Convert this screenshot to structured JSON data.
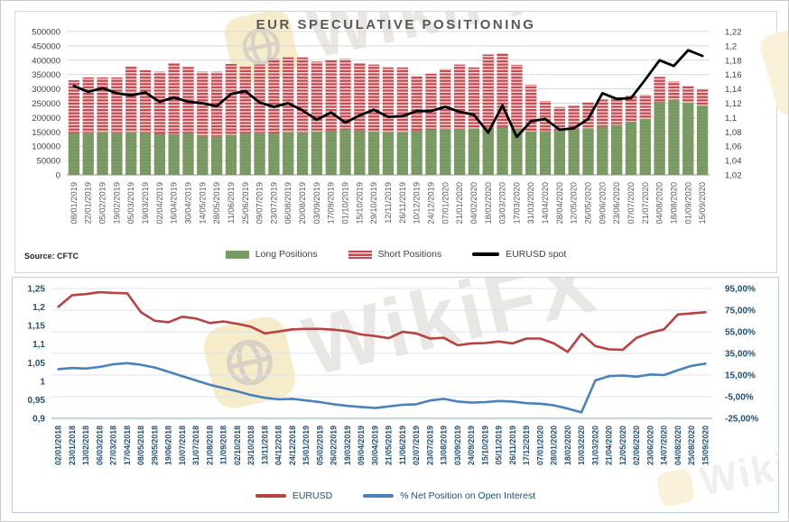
{
  "watermark": {
    "text": "WikiFX"
  },
  "chart_data": [
    {
      "id": "eur-speculative-positioning",
      "type": "bar",
      "subtype": "stacked-bars-with-line",
      "title": "EUR SPECULATIVE POSITIONING",
      "source": "Source: CFTC",
      "legend_position": "bottom",
      "grid": true,
      "left_axis": {
        "min": 0,
        "max": 500000,
        "tick_labels": [
          "500000",
          "450000",
          "400000",
          "350000",
          "300000",
          "250000",
          "200000",
          "150000",
          "100000",
          "50000",
          "0"
        ]
      },
      "right_axis": {
        "min": 1.02,
        "max": 1.22,
        "tick_labels": [
          "1,22",
          "1,2",
          "1,18",
          "1,16",
          "1,14",
          "1,12",
          "1,1",
          "1,08",
          "1,06",
          "1,04",
          "1,02"
        ]
      },
      "categories": [
        "08/01/2019",
        "22/01/2019",
        "05/02/2019",
        "19/02/2019",
        "05/03/2019",
        "19/03/2019",
        "02/04/2019",
        "16/04/2019",
        "30/04/2019",
        "14/05/2019",
        "28/05/2019",
        "11/06/2019",
        "25/06/2019",
        "09/07/2019",
        "23/07/2019",
        "06/08/2019",
        "20/08/2019",
        "03/09/2019",
        "17/09/2019",
        "01/10/2019",
        "15/10/2019",
        "29/10/2019",
        "12/11/2019",
        "26/11/2019",
        "10/12/2019",
        "24/12/2019",
        "07/01/2020",
        "21/01/2020",
        "04/02/2020",
        "18/02/2020",
        "03/03/2020",
        "17/03/2020",
        "31/03/2020",
        "14/04/2020",
        "28/04/2020",
        "12/05/2020",
        "26/05/2020",
        "09/06/2020",
        "23/06/2020",
        "07/07/2020",
        "21/07/2020",
        "04/08/2020",
        "18/08/2020",
        "01/09/2020",
        "15/09/2020"
      ],
      "series": [
        {
          "name": "Long Positions",
          "type": "bar",
          "axis": "left",
          "color": "#7d9d66",
          "stripe": "#75955e",
          "values": [
            145000,
            147000,
            150000,
            148000,
            150000,
            148000,
            143000,
            142000,
            145000,
            137000,
            136000,
            140000,
            144000,
            147000,
            144000,
            150000,
            149000,
            151000,
            154000,
            157000,
            155000,
            152000,
            150000,
            150000,
            154000,
            157000,
            160000,
            159000,
            162000,
            165000,
            167000,
            158000,
            152000,
            153000,
            155000,
            158000,
            163000,
            168000,
            175000,
            186000,
            196000,
            255000,
            263000,
            252000,
            242000
          ]
        },
        {
          "name": "Short Positions",
          "type": "bar",
          "axis": "left",
          "color": "#c9484f",
          "stripe": "#f3d9d9",
          "values": [
            185000,
            193000,
            190000,
            192000,
            230000,
            217000,
            217000,
            248000,
            232000,
            223000,
            224000,
            247000,
            236000,
            238000,
            261000,
            260000,
            261000,
            244000,
            246000,
            248000,
            235000,
            233000,
            225000,
            225000,
            191000,
            196000,
            210000,
            226000,
            213000,
            255000,
            258000,
            226000,
            163000,
            105000,
            82000,
            84000,
            90000,
            95000,
            95000,
            92000,
            84000,
            87000,
            63000,
            58000,
            58000
          ]
        },
        {
          "name": "EURUSD spot",
          "type": "line",
          "axis": "right",
          "color": "#000000",
          "values": [
            1.144,
            1.136,
            1.141,
            1.134,
            1.131,
            1.135,
            1.122,
            1.128,
            1.122,
            1.12,
            1.116,
            1.133,
            1.137,
            1.121,
            1.115,
            1.12,
            1.11,
            1.097,
            1.107,
            1.093,
            1.103,
            1.111,
            1.101,
            1.102,
            1.109,
            1.109,
            1.115,
            1.108,
            1.104,
            1.079,
            1.117,
            1.073,
            1.095,
            1.098,
            1.083,
            1.085,
            1.098,
            1.134,
            1.126,
            1.127,
            1.153,
            1.18,
            1.172,
            1.194,
            1.186
          ]
        }
      ],
      "colors": {
        "grid": "#d9d9d9",
        "axis_line": "#a6a6a6",
        "tick_text": "#3f3f3f",
        "x_text": "#595959",
        "title": "#595959"
      }
    },
    {
      "id": "eurusd-vs-net-position",
      "type": "line",
      "title": "",
      "legend_position": "bottom",
      "grid": true,
      "left_axis": {
        "min": 0.9,
        "max": 1.25,
        "tick_labels": [
          "1,25",
          "1,2",
          "1,15",
          "1,1",
          "1,05",
          "1",
          "0,95",
          "0,9"
        ]
      },
      "right_axis": {
        "min": -25,
        "max": 95,
        "tick_labels": [
          "95,00%",
          "75,00%",
          "55,00%",
          "35,00%",
          "15,00%",
          "-5,00%",
          "-25,00%"
        ]
      },
      "categories": [
        "02/01/2018",
        "23/01/2018",
        "13/02/2018",
        "06/03/2018",
        "27/03/2018",
        "17/04/2018",
        "08/05/2018",
        "29/05/2018",
        "19/06/2018",
        "10/07/2018",
        "31/07/2018",
        "21/08/2018",
        "11/09/2018",
        "02/10/2018",
        "23/10/2018",
        "13/11/2018",
        "04/12/2018",
        "24/12/2018",
        "15/01/2019",
        "05/02/2019",
        "26/02/2019",
        "19/03/2019",
        "09/04/2019",
        "30/04/2019",
        "21/05/2019",
        "11/06/2019",
        "02/07/2019",
        "23/07/2019",
        "13/08/2019",
        "03/09/2019",
        "24/09/2019",
        "15/10/2019",
        "05/11/2019",
        "26/11/2019",
        "17/12/2019",
        "07/01/2020",
        "28/01/2020",
        "18/02/2020",
        "10/03/2020",
        "31/03/2020",
        "21/04/2020",
        "12/05/2020",
        "02/06/2020",
        "23/06/2020",
        "14/07/2020",
        "04/08/2020",
        "25/08/2020",
        "15/09/2020"
      ],
      "series": [
        {
          "name": "EURUSD",
          "type": "line",
          "axis": "left",
          "color": "#b8423f",
          "values": [
            1.201,
            1.232,
            1.235,
            1.24,
            1.238,
            1.237,
            1.186,
            1.163,
            1.159,
            1.174,
            1.169,
            1.157,
            1.161,
            1.155,
            1.147,
            1.129,
            1.134,
            1.14,
            1.141,
            1.141,
            1.139,
            1.135,
            1.126,
            1.122,
            1.116,
            1.133,
            1.129,
            1.115,
            1.117,
            1.097,
            1.102,
            1.103,
            1.107,
            1.102,
            1.115,
            1.115,
            1.102,
            1.079,
            1.128,
            1.095,
            1.086,
            1.085,
            1.117,
            1.131,
            1.14,
            1.18,
            1.183,
            1.186
          ]
        },
        {
          "name": "% Net Position on Open Interest",
          "type": "line",
          "axis": "right",
          "color": "#4a82bc",
          "values": [
            20.5,
            21.5,
            21.0,
            22.5,
            25.0,
            26.0,
            24.5,
            22.0,
            18.0,
            14.0,
            10.0,
            6.0,
            3.0,
            0.0,
            -3.5,
            -6.0,
            -7.5,
            -7.0,
            -8.5,
            -10.0,
            -12.0,
            -13.5,
            -14.5,
            -15.5,
            -14.0,
            -12.5,
            -12.0,
            -8.5,
            -7.0,
            -9.5,
            -10.5,
            -10.0,
            -9.0,
            -9.5,
            -11.0,
            -11.5,
            -13.0,
            -16.0,
            -19.5,
            10.0,
            14.0,
            14.5,
            13.5,
            15.5,
            15.0,
            19.5,
            23.5,
            25.5
          ]
        }
      ],
      "colors": {
        "grid": "#dbe5f1",
        "axis_line": "#9db3cd",
        "tick_text": "#1f4e79",
        "x_text": "#1f4e79"
      }
    }
  ]
}
